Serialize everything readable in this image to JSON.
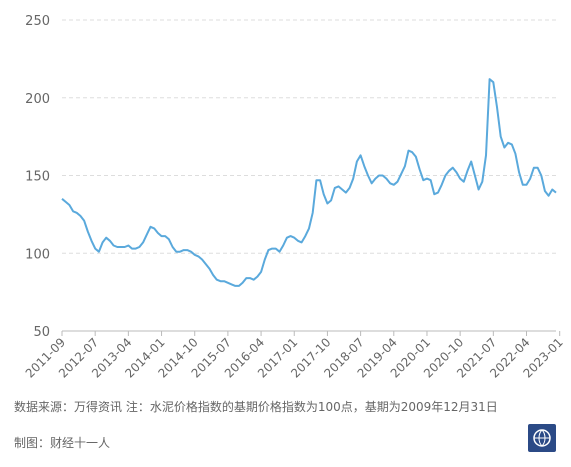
{
  "chart_data": {
    "type": "line",
    "title": "",
    "xlabel": "",
    "ylabel": "",
    "ylim": [
      50,
      250
    ],
    "yticks": [
      50,
      100,
      150,
      200,
      250
    ],
    "xtick_labels": [
      "2011-09",
      "2012-07",
      "2013-04",
      "2014-01",
      "2014-10",
      "2015-07",
      "2016-04",
      "2017-01",
      "2017-10",
      "2018-07",
      "2019-04",
      "2020-01",
      "2020-10",
      "2021-07",
      "2022-04",
      "2023-01"
    ],
    "grid": "horizontal-dashed",
    "colors": {
      "line": "#5aa9dc",
      "grid": "#dddddd"
    },
    "series": [
      {
        "name": "",
        "start": "2011-09",
        "frequency": "monthly",
        "values": [
          135,
          133,
          131,
          127,
          126,
          124,
          121,
          114,
          108,
          103,
          101,
          107,
          110,
          108,
          105,
          104,
          104,
          104,
          105,
          103,
          103,
          104,
          107,
          112,
          117,
          116,
          113,
          111,
          111,
          109,
          104,
          101,
          101,
          102,
          102,
          101,
          99,
          98,
          96,
          93,
          90,
          86,
          83,
          82,
          82,
          81,
          80,
          79,
          79,
          81,
          84,
          84,
          83,
          85,
          88,
          96,
          102,
          103,
          103,
          101,
          105,
          110,
          111,
          110,
          108,
          107,
          111,
          116,
          126,
          147,
          147,
          138,
          132,
          134,
          142,
          143,
          141,
          139,
          142,
          148,
          159,
          163,
          156,
          150,
          145,
          148,
          150,
          150,
          148,
          145,
          144,
          146,
          151,
          156,
          166,
          165,
          162,
          154,
          147,
          148,
          147,
          138,
          139,
          144,
          150,
          153,
          155,
          152,
          148,
          146,
          153,
          159,
          150,
          141,
          146,
          163,
          212,
          210,
          194,
          175,
          168,
          171,
          170,
          164,
          152,
          144,
          144,
          148,
          155,
          155,
          150,
          140,
          137,
          141,
          139
        ]
      }
    ]
  },
  "footer": {
    "note": "数据来源：万得资讯 注：水泥价格指数的基期价格指数为100点，基期为2009年12月31日",
    "credit": "制图：财经十一人",
    "logo_text": "财经十一人",
    "logo_icon": "globe-icon"
  }
}
